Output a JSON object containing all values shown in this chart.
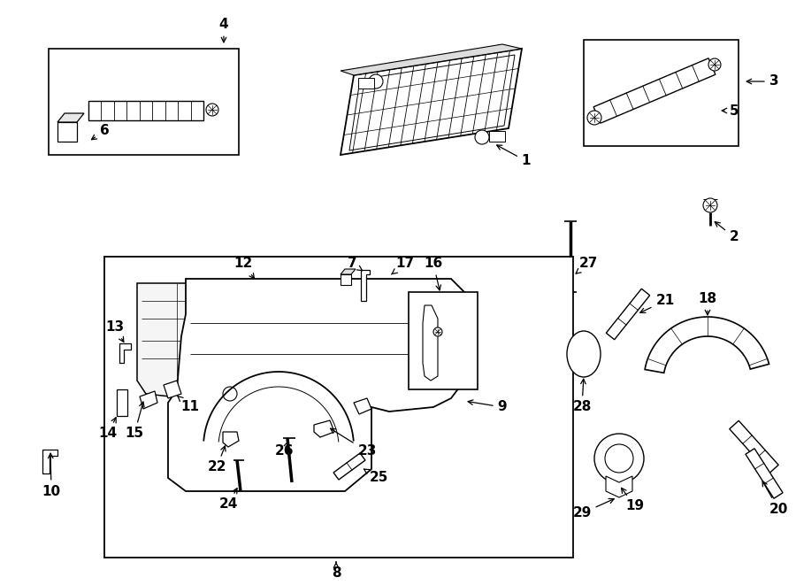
{
  "bg": "#ffffff",
  "lc": "#000000",
  "fw": 9.0,
  "fh": 6.61,
  "dpi": 100
}
